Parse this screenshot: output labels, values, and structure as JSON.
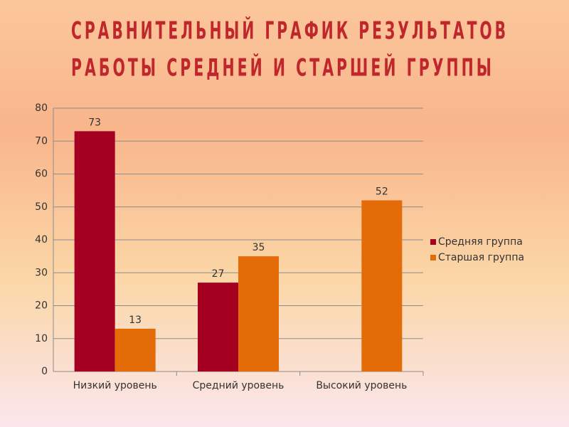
{
  "chart_data": {
    "type": "bar",
    "title": [
      "СРАВНИТЕЛЬНЫЙ ГРАФИК РЕЗУЛЬТАТОВ",
      "РАБОТЫ СРЕДНЕЙ И СТАРШЕЙ ГРУППЫ"
    ],
    "categories": [
      "Низкий уровень",
      "Средний уровень",
      "Высокий уровень"
    ],
    "series": [
      {
        "name": "Средняя группа",
        "color": "#a50021",
        "values": [
          73,
          27,
          null
        ]
      },
      {
        "name": "Старшая группа",
        "color": "#e36c09",
        "values": [
          13,
          35,
          52
        ]
      }
    ],
    "ylim": [
      0,
      80
    ],
    "yticks": [
      0,
      10,
      20,
      30,
      40,
      50,
      60,
      70,
      80
    ],
    "grid": true,
    "legend": "right"
  }
}
